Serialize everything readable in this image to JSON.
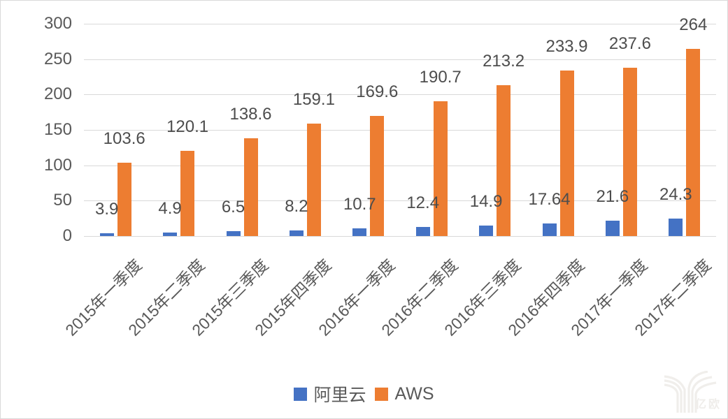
{
  "chart_data": {
    "type": "bar",
    "title": "",
    "xlabel": "",
    "ylabel": "",
    "categories": [
      "2015年一季度",
      "2015年二季度",
      "2015年三季度",
      "2015年四季度",
      "2016年一季度",
      "2016年二季度",
      "2016年三季度",
      "2016年四季度",
      "2017年一季度",
      "2017年二季度"
    ],
    "series": [
      {
        "name": "阿里云",
        "color": "#4472C4",
        "values": [
          3.9,
          4.9,
          6.5,
          8.2,
          10.7,
          12.4,
          14.9,
          17.64,
          21.6,
          24.3
        ],
        "labels": [
          "3.9",
          "4.9",
          "6.5",
          "8.2",
          "10.7",
          "12.4",
          "14.9",
          "17.64",
          "21.6",
          "24.3"
        ]
      },
      {
        "name": "AWS",
        "color": "#ED7D31",
        "values": [
          103.6,
          120.1,
          138.6,
          159.1,
          169.6,
          190.7,
          213.2,
          233.9,
          237.6,
          264
        ],
        "labels": [
          "103.6",
          "120.1",
          "138.6",
          "159.1",
          "169.6",
          "190.7",
          "213.2",
          "233.9",
          "237.6",
          "264"
        ]
      }
    ],
    "ylim": [
      0,
      300
    ],
    "yticks": [
      0,
      50,
      100,
      150,
      200,
      250,
      300
    ],
    "grid": true,
    "grid_color": "#D9D9D9",
    "text_color": "#595959",
    "legend_position": "bottom"
  },
  "watermark": {
    "text": "亿欧"
  }
}
